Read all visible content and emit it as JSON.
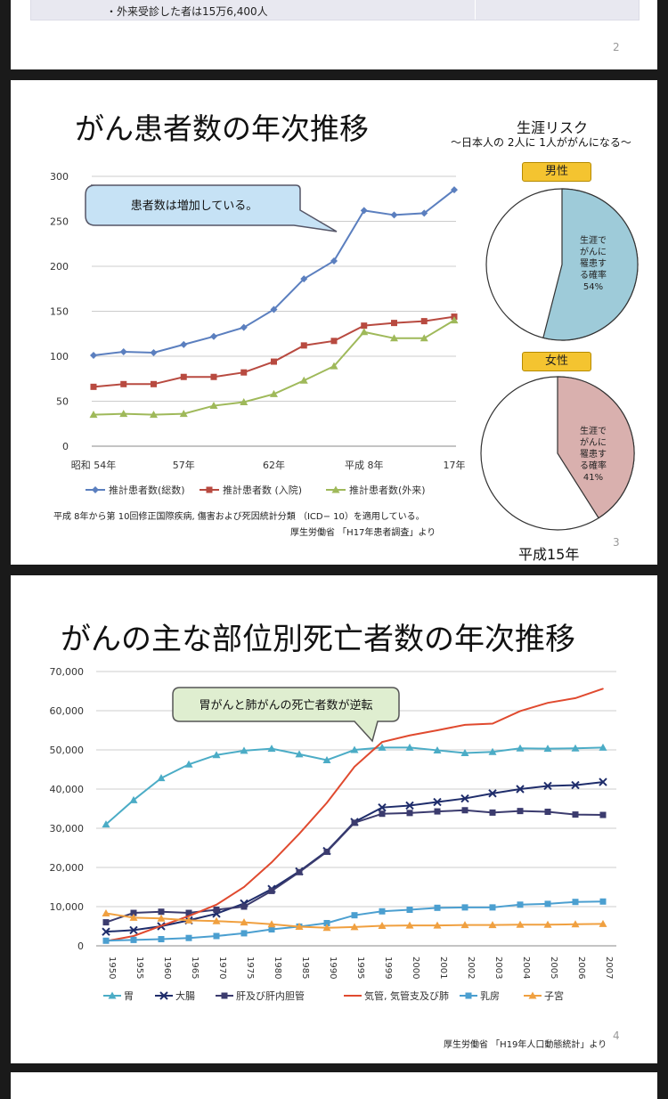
{
  "slide2": {
    "bullet": "・外来受診した者は15万6,400人",
    "page_number": "2"
  },
  "slide3": {
    "title": "がん患者数の年次推移",
    "callout": "患者数は増加している。",
    "note": "平成 8年から第 10回修正国際疾病, 傷害および死因統計分類 （ICD− 10）を適用している。",
    "source": "厚生労働省 「H17年患者調査」より",
    "page_number": "3",
    "risk_title": "生涯リスク",
    "risk_subtitle": "〜日本人の 2人に 1人ががんになる〜",
    "male_label": "男性",
    "female_label": "女性",
    "male_pie_text": [
      "生涯で",
      "がんに",
      "罹患す",
      "る確率",
      "54%"
    ],
    "female_pie_text": [
      "生涯で",
      "がんに",
      "罹患す",
      "る確率",
      "41%"
    ],
    "pie_year": "平成15年",
    "colors": {
      "male": "#9ecbd9",
      "female": "#d9b0ae",
      "total": "#5b7fbf",
      "inpatient": "#b84a40",
      "outpatient": "#9fb95a"
    }
  },
  "slide4": {
    "title": "がんの主な部位別死亡者数の年次推移",
    "callout": "胃がんと肺がんの死亡者数が逆転",
    "source": "厚生労働省 「H19年人口動態統計」より",
    "page_number": "4",
    "colors": {
      "stomach": "#4bacc6",
      "colon": "#1f2d6b",
      "liver": "#3b3b6e",
      "lung": "#e04a2f",
      "breast": "#4b9fd0",
      "uterus": "#f0a040"
    }
  },
  "chart_data": [
    {
      "type": "line",
      "title": "がん患者数の年次推移",
      "x": [
        "昭和 54年",
        "",
        "",
        "57年",
        "",
        "",
        "62年",
        "",
        "",
        "平成 8年",
        "",
        "",
        "17年"
      ],
      "tick_labels": [
        "昭和 54年",
        "57年",
        "62年",
        "平成 8年",
        "17年"
      ],
      "ylim": [
        0,
        300
      ],
      "yticks": [
        0,
        50,
        100,
        150,
        200,
        250,
        300
      ],
      "legend": "bottom",
      "series": [
        {
          "name": "推計患者数(総数)",
          "values": [
            101,
            105,
            104,
            113,
            122,
            132,
            152,
            186,
            206,
            262,
            257,
            259,
            285
          ]
        },
        {
          "name": "推計患者数 (入院)",
          "values": [
            66,
            69,
            69,
            77,
            77,
            82,
            94,
            112,
            117,
            134,
            137,
            139,
            144
          ]
        },
        {
          "name": "推計患者数(外来)",
          "values": [
            35,
            36,
            35,
            36,
            45,
            49,
            58,
            73,
            89,
            127,
            120,
            120,
            140
          ]
        }
      ]
    },
    {
      "type": "pie",
      "title": "男性",
      "values": [
        54,
        46
      ],
      "labels": [
        "生涯でがんに罹患する確率 54%",
        ""
      ]
    },
    {
      "type": "pie",
      "title": "女性",
      "values": [
        41,
        59
      ],
      "labels": [
        "生涯でがんに罹患する確率 41%",
        ""
      ]
    },
    {
      "type": "line",
      "title": "がんの主な部位別死亡者数の年次推移",
      "x": [
        "1950",
        "1955",
        "1960",
        "1965",
        "1970",
        "1975",
        "1980",
        "1985",
        "1990",
        "1995",
        "1999",
        "2000",
        "2001",
        "2002",
        "2003",
        "2004",
        "2005",
        "2006",
        "2007"
      ],
      "ylim": [
        0,
        70000
      ],
      "yticks": [
        "0",
        "10,000",
        "20,000",
        "30,000",
        "40,000",
        "50,000",
        "60,000",
        "70,000"
      ],
      "legend": "bottom",
      "series": [
        {
          "name": "胃",
          "values": [
            31000,
            37200,
            42800,
            46300,
            48700,
            49800,
            50300,
            48900,
            47400,
            50000,
            50600,
            50600,
            49900,
            49200,
            49500,
            50400,
            50300,
            50400,
            50600
          ]
        },
        {
          "name": "大腸",
          "values": [
            3600,
            4000,
            5000,
            6500,
            8200,
            10800,
            14500,
            19000,
            24200,
            31600,
            35300,
            35800,
            36700,
            37600,
            38900,
            40000,
            40800,
            41000,
            41800
          ]
        },
        {
          "name": "肝及び肝内胆管",
          "values": [
            6000,
            8400,
            8700,
            8400,
            9200,
            10000,
            14000,
            18800,
            24000,
            31400,
            33700,
            33900,
            34300,
            34600,
            34000,
            34400,
            34200,
            33500,
            33400
          ]
        },
        {
          "name": "気管, 気管支及び肺",
          "values": [
            1200,
            2500,
            5100,
            7600,
            10500,
            15000,
            21300,
            28600,
            36500,
            45700,
            52000,
            53700,
            55000,
            56400,
            56700,
            59900,
            62000,
            63200,
            65600
          ]
        },
        {
          "name": "乳房",
          "values": [
            1300,
            1500,
            1700,
            2000,
            2500,
            3200,
            4200,
            4900,
            5800,
            7800,
            8800,
            9200,
            9700,
            9800,
            9800,
            10500,
            10700,
            11200,
            11300
          ]
        },
        {
          "name": "子宮",
          "values": [
            8300,
            7200,
            7000,
            6500,
            6300,
            6000,
            5500,
            4900,
            4600,
            4800,
            5100,
            5200,
            5200,
            5300,
            5300,
            5400,
            5400,
            5500,
            5600
          ]
        }
      ]
    }
  ]
}
